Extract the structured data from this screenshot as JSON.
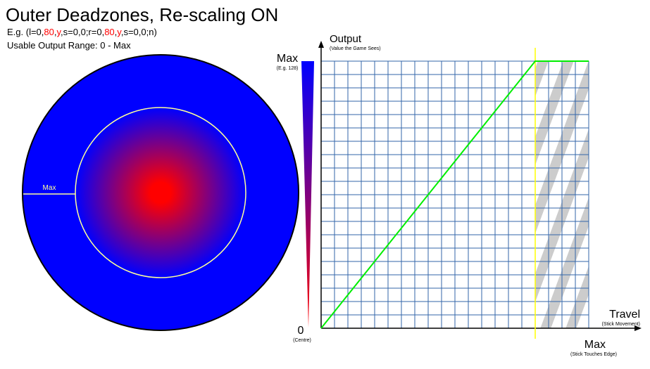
{
  "header": {
    "title": "Outer Deadzones, Re-scaling ON",
    "example_prefix": "E.g. (",
    "example_segments": [
      {
        "text": "l=0,",
        "highlight": false
      },
      {
        "text": "80",
        "highlight": true
      },
      {
        "text": ",",
        "highlight": false
      },
      {
        "text": "y",
        "highlight": true
      },
      {
        "text": ",s=0,0;r=0,",
        "highlight": false
      },
      {
        "text": "80",
        "highlight": true
      },
      {
        "text": ",",
        "highlight": false
      },
      {
        "text": "y",
        "highlight": true
      },
      {
        "text": ",s=0,0;n)",
        "highlight": false
      }
    ],
    "usable_range": "Usable Output Range: 0 - Max"
  },
  "stick": {
    "max_label": "Max",
    "colors": {
      "deadzone": "#0000ff",
      "centre": "#ff0000",
      "edge": "#0000ff",
      "boundary": "#ffff66"
    }
  },
  "graph": {
    "y_axis_title": "Output",
    "y_axis_subtitle": "(Value the Game Sees)",
    "y_max_label": "Max",
    "y_max_sublabel": "(E.g. 128)",
    "origin_label": "0",
    "origin_sublabel": "(Centre)",
    "x_axis_title": "Travel",
    "x_axis_subtitle": "(Stick Movement)",
    "x_max_label": "Max",
    "x_max_sublabel": "(Stick Touches Edge)",
    "colors": {
      "grid": "#3366aa",
      "response": "#00ee00",
      "deadzone_line": "#ffff00",
      "hatch": "#cccccc",
      "bar_top": "#0000ff",
      "bar_bottom": "#ff0000"
    }
  },
  "chart_data": {
    "type": "line",
    "xlabel": "Travel",
    "ylabel": "Output",
    "series": [
      {
        "x": [
          0,
          0.8,
          1.0
        ],
        "y": [
          0,
          1.0,
          1.0
        ]
      }
    ],
    "deadzone_start": 0.8
  }
}
